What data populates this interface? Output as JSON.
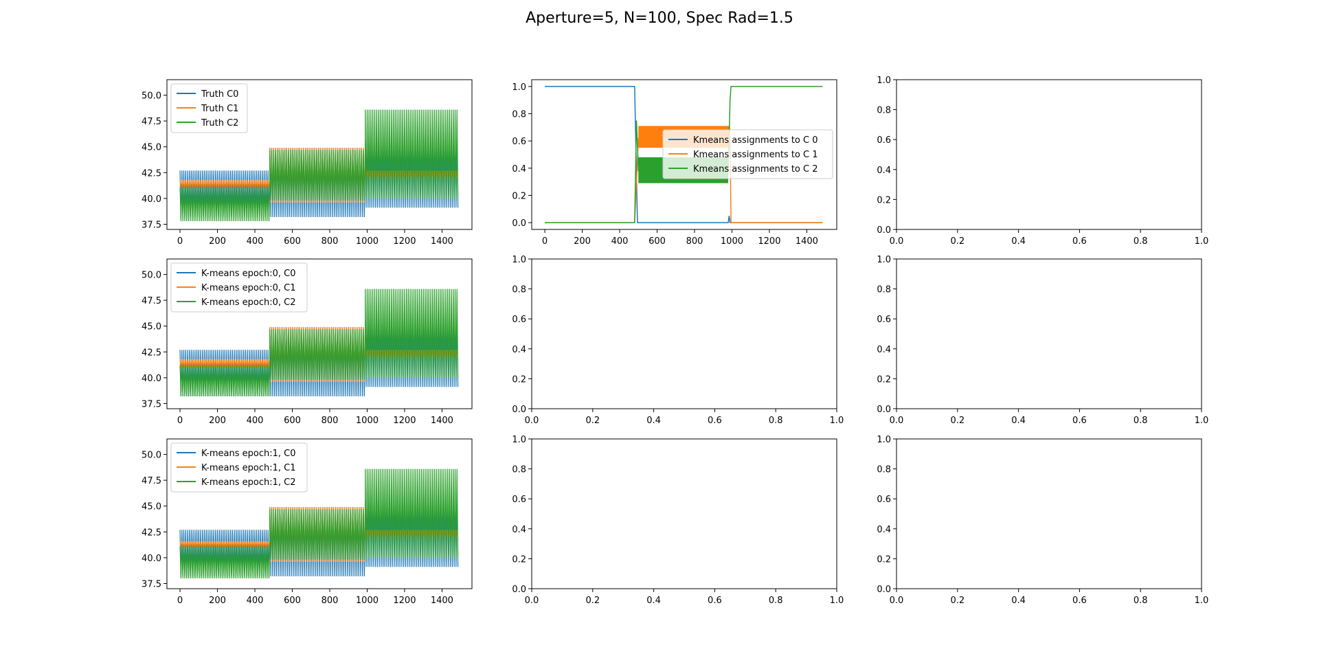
{
  "figure": {
    "title": "Aperture=5, N=100, Spec Rad=1.5"
  },
  "colors": {
    "c0": "#1f77b4",
    "c1": "#ff7f0e",
    "c2": "#2ca02c"
  },
  "chart_data": [
    {
      "type": "line",
      "xlim": [
        -70,
        1560
      ],
      "ylim": [
        37.0,
        51.5
      ],
      "xticks": [
        0,
        200,
        400,
        600,
        800,
        1000,
        1200,
        1400
      ],
      "yticks": [
        37.5,
        40.0,
        42.5,
        45.0,
        47.5,
        50.0
      ],
      "legend_position": "top-left",
      "series": [
        {
          "name": "Truth C0",
          "segments": [
            {
              "x": [
                0,
                480
              ],
              "lo": 38.2,
              "hi": 42.7
            },
            {
              "x": [
                480,
                990
              ],
              "lo": 38.2,
              "hi": 44.9
            },
            {
              "x": [
                990,
                1485
              ],
              "lo": 39.1,
              "hi": 45.5
            }
          ]
        },
        {
          "name": "Truth C1",
          "segments": [
            {
              "x": [
                0,
                480
              ],
              "lo": 41.0,
              "hi": 41.8
            },
            {
              "x": [
                480,
                990
              ],
              "lo": 39.6,
              "hi": 44.9
            },
            {
              "x": [
                990,
                1485
              ],
              "lo": 41.7,
              "hi": 42.7
            }
          ]
        },
        {
          "name": "Truth C2",
          "segments": [
            {
              "x": [
                0,
                480
              ],
              "lo": 37.8,
              "hi": 41.1
            },
            {
              "x": [
                480,
                990
              ],
              "lo": 39.8,
              "hi": 44.7
            },
            {
              "x": [
                990,
                1485
              ],
              "lo": 40.0,
              "hi": 48.6
            }
          ]
        }
      ]
    },
    {
      "type": "line",
      "xlim": [
        -70,
        1560
      ],
      "ylim": [
        -0.05,
        1.05
      ],
      "xticks": [
        0,
        200,
        400,
        600,
        800,
        1000,
        1200,
        1400
      ],
      "yticks": [
        0.0,
        0.2,
        0.4,
        0.6,
        0.8,
        1.0
      ],
      "legend_position": "center-right",
      "series": [
        {
          "name": "Kmeans assignments to C 0",
          "x": [
            0,
            480,
            495,
            980,
            985,
            990,
            1485
          ],
          "y": [
            1.0,
            1.0,
            0.0,
            0.0,
            0.05,
            0.0,
            0.0
          ]
        },
        {
          "name": "Kmeans assignments to C 1",
          "x": [
            0,
            480,
            500,
            990,
            995,
            1485
          ],
          "y": [
            0.0,
            0.0,
            0.62,
            0.62,
            0.0,
            0.0
          ],
          "band": {
            "x": [
              500,
              990
            ],
            "lo": 0.55,
            "hi": 0.71
          }
        },
        {
          "name": "Kmeans assignments to C 2",
          "x": [
            0,
            480,
            490,
            500,
            980,
            990,
            995,
            1485
          ],
          "y": [
            0.0,
            0.0,
            0.75,
            0.38,
            0.38,
            0.9,
            1.0,
            1.0
          ],
          "band": {
            "x": [
              500,
              980
            ],
            "lo": 0.29,
            "hi": 0.48
          }
        }
      ]
    },
    {
      "type": "empty",
      "xlim": [
        0,
        1
      ],
      "ylim": [
        0,
        1
      ],
      "xticks": [
        0.0,
        0.2,
        0.4,
        0.6,
        0.8,
        1.0
      ],
      "yticks": [
        0.0,
        0.2,
        0.4,
        0.6,
        0.8,
        1.0
      ]
    },
    {
      "type": "line",
      "xlim": [
        -70,
        1560
      ],
      "ylim": [
        37.0,
        51.5
      ],
      "xticks": [
        0,
        200,
        400,
        600,
        800,
        1000,
        1200,
        1400
      ],
      "yticks": [
        37.5,
        40.0,
        42.5,
        45.0,
        47.5,
        50.0
      ],
      "legend_position": "top-left",
      "series": [
        {
          "name": "K-means epoch:0, C0",
          "segments": [
            {
              "x": [
                0,
                480
              ],
              "lo": 38.2,
              "hi": 42.7
            },
            {
              "x": [
                480,
                990
              ],
              "lo": 38.2,
              "hi": 44.9
            },
            {
              "x": [
                990,
                1485
              ],
              "lo": 39.1,
              "hi": 45.5
            }
          ]
        },
        {
          "name": "K-means epoch:0, C1",
          "segments": [
            {
              "x": [
                0,
                480
              ],
              "lo": 41.0,
              "hi": 41.8
            },
            {
              "x": [
                480,
                990
              ],
              "lo": 39.6,
              "hi": 44.9
            },
            {
              "x": [
                990,
                1485
              ],
              "lo": 41.7,
              "hi": 42.7
            }
          ]
        },
        {
          "name": "K-means epoch:0, C2",
          "segments": [
            {
              "x": [
                0,
                480
              ],
              "lo": 38.2,
              "hi": 41.2
            },
            {
              "x": [
                480,
                990
              ],
              "lo": 39.8,
              "hi": 44.7
            },
            {
              "x": [
                990,
                1485
              ],
              "lo": 40.0,
              "hi": 48.6
            }
          ]
        }
      ]
    },
    {
      "type": "empty",
      "xlim": [
        0,
        1
      ],
      "ylim": [
        0,
        1
      ],
      "xticks": [
        0.0,
        0.2,
        0.4,
        0.6,
        0.8,
        1.0
      ],
      "yticks": [
        0.0,
        0.2,
        0.4,
        0.6,
        0.8,
        1.0
      ]
    },
    {
      "type": "empty",
      "xlim": [
        0,
        1
      ],
      "ylim": [
        0,
        1
      ],
      "xticks": [
        0.0,
        0.2,
        0.4,
        0.6,
        0.8,
        1.0
      ],
      "yticks": [
        0.0,
        0.2,
        0.4,
        0.6,
        0.8,
        1.0
      ]
    },
    {
      "type": "line",
      "xlim": [
        -70,
        1560
      ],
      "ylim": [
        37.0,
        51.5
      ],
      "xticks": [
        0,
        200,
        400,
        600,
        800,
        1000,
        1200,
        1400
      ],
      "yticks": [
        37.5,
        40.0,
        42.5,
        45.0,
        47.5,
        50.0
      ],
      "legend_position": "top-left",
      "series": [
        {
          "name": "K-means epoch:1, C0",
          "segments": [
            {
              "x": [
                0,
                480
              ],
              "lo": 38.2,
              "hi": 42.7
            },
            {
              "x": [
                480,
                990
              ],
              "lo": 38.2,
              "hi": 44.9
            },
            {
              "x": [
                990,
                1485
              ],
              "lo": 39.1,
              "hi": 45.5
            }
          ]
        },
        {
          "name": "K-means epoch:1, C1",
          "segments": [
            {
              "x": [
                0,
                480
              ],
              "lo": 41.0,
              "hi": 41.6
            },
            {
              "x": [
                480,
                990
              ],
              "lo": 39.6,
              "hi": 44.9
            },
            {
              "x": [
                990,
                1485
              ],
              "lo": 41.7,
              "hi": 42.7
            }
          ]
        },
        {
          "name": "K-means epoch:1, C2",
          "segments": [
            {
              "x": [
                0,
                480
              ],
              "lo": 38.0,
              "hi": 41.1
            },
            {
              "x": [
                480,
                990
              ],
              "lo": 39.8,
              "hi": 44.7
            },
            {
              "x": [
                990,
                1485
              ],
              "lo": 40.0,
              "hi": 48.6
            }
          ]
        }
      ]
    },
    {
      "type": "empty",
      "xlim": [
        0,
        1
      ],
      "ylim": [
        0,
        1
      ],
      "xticks": [
        0.0,
        0.2,
        0.4,
        0.6,
        0.8,
        1.0
      ],
      "yticks": [
        0.0,
        0.2,
        0.4,
        0.6,
        0.8,
        1.0
      ]
    },
    {
      "type": "empty",
      "xlim": [
        0,
        1
      ],
      "ylim": [
        0,
        1
      ],
      "xticks": [
        0.0,
        0.2,
        0.4,
        0.6,
        0.8,
        1.0
      ],
      "yticks": [
        0.0,
        0.2,
        0.4,
        0.6,
        0.8,
        1.0
      ]
    }
  ]
}
